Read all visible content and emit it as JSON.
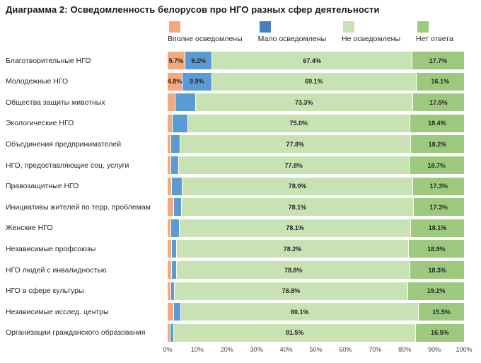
{
  "title": "Диаграмма 2: Осведомленность белорусов про НГО разных сфер деятельности",
  "chart_data": {
    "type": "bar",
    "stacked": true,
    "orientation": "horizontal",
    "title": "Диаграмма 2: Осведомленность белорусов про НГО разных сфер деятельности",
    "legend": [
      "Вполне осведомлены",
      "Мало осведомлены",
      "Не осведомлены",
      "Нет ответа"
    ],
    "legend_position": "top",
    "series_keys": [
      "fully-aware",
      "little-aware",
      "not-aware",
      "no-answer"
    ],
    "series_colors": [
      "#F4A97C",
      "#5B9BD5",
      "#C9E2B4",
      "#9CC97D"
    ],
    "legend_swatch_colors": [
      "#F4A97C",
      "#4A7EBE",
      "#C9E2B4",
      "#9CC97D"
    ],
    "xlim": [
      0,
      100
    ],
    "grid": false,
    "x_ticks": [
      "0%",
      "10%",
      "20%",
      "30%",
      "40%",
      "50%",
      "60%",
      "70%",
      "80%",
      "90%",
      "100%"
    ],
    "label_color": "#262626",
    "rows": [
      {
        "category": "Благотворительные НГО",
        "values": [
          5.7,
          9.2,
          67.4,
          17.7
        ],
        "labels": [
          "5.7%",
          "9.2%",
          "67.4%",
          "17.7%"
        ]
      },
      {
        "category": "Молодежные НГО",
        "values": [
          4.8,
          9.9,
          69.1,
          16.1
        ],
        "labels": [
          "4.8%",
          "9.9%",
          "69.1%",
          "16.1%"
        ]
      },
      {
        "category": "Общества защиты животных",
        "values": [
          2.4,
          6.8,
          73.3,
          17.5
        ],
        "labels": [
          "",
          "",
          "73.3%",
          "17.5%"
        ]
      },
      {
        "category": "Экологические НГО",
        "values": [
          1.5,
          5.1,
          75.0,
          18.4
        ],
        "labels": [
          "",
          "",
          "75.0%",
          "18.4%"
        ]
      },
      {
        "category": "Объединения предпринимателей",
        "values": [
          1.0,
          3.0,
          77.8,
          18.2
        ],
        "labels": [
          "",
          "",
          "77.8%",
          "18.2%"
        ]
      },
      {
        "category": "НГО, предоставляющие соц. услуги",
        "values": [
          0.9,
          2.6,
          77.8,
          18.7
        ],
        "labels": [
          "",
          "",
          "77.8%",
          "18.7%"
        ]
      },
      {
        "category": "Правозащитные НГО",
        "values": [
          1.2,
          3.5,
          78.0,
          17.3
        ],
        "labels": [
          "",
          "",
          "78.0%",
          "17.3%"
        ]
      },
      {
        "category": "Инициативы жителей по терр. проблемам",
        "values": [
          1.9,
          2.7,
          78.1,
          17.3
        ],
        "labels": [
          "",
          "",
          "78.1%",
          "17.3%"
        ]
      },
      {
        "category": "Женские НГО",
        "values": [
          1.0,
          2.8,
          78.1,
          18.1
        ],
        "labels": [
          "",
          "",
          "78.1%",
          "18.1%"
        ]
      },
      {
        "category": "Независимые профсоюзы",
        "values": [
          1.2,
          1.7,
          78.2,
          18.9
        ],
        "labels": [
          "",
          "",
          "78.2%",
          "18.9%"
        ]
      },
      {
        "category": "НГО людей с инвалидностью",
        "values": [
          1.2,
          1.7,
          78.8,
          18.3
        ],
        "labels": [
          "",
          "",
          "78.8%",
          "18.3%"
        ]
      },
      {
        "category": "НГО в сфере культуры",
        "values": [
          0.9,
          1.2,
          78.8,
          19.1
        ],
        "labels": [
          "",
          "",
          "78.8%",
          "19.1%"
        ]
      },
      {
        "category": "Независимые исслед. центры",
        "values": [
          1.8,
          2.6,
          80.1,
          15.5
        ],
        "labels": [
          "",
          "",
          "80.1%",
          "15.5%"
        ]
      },
      {
        "category": "Организации гражданского образования",
        "values": [
          0.8,
          1.2,
          81.5,
          16.5
        ],
        "labels": [
          "",
          "",
          "81.5%",
          "16.5%"
        ]
      }
    ]
  }
}
